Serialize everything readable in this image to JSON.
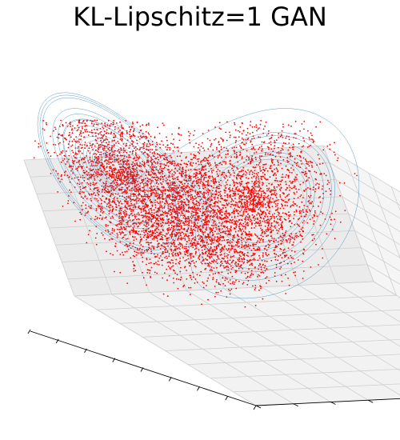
{
  "chart_data": {
    "type": "scatter",
    "projection": "3d",
    "title": "KL-Lipschitz=1 GAN",
    "xlabel": "",
    "ylabel": "",
    "zlabel": "",
    "tick_labels_shown": false,
    "grid": true,
    "attractor": "lorenz",
    "series": [
      {
        "kind": "line",
        "color": "#1f77b4",
        "role": "reference trajectory",
        "points_xyz": [
          [
            1,
            1,
            1
          ],
          [
            8.5,
            10.7,
            13
          ],
          [
            3,
            5.9,
            25.3
          ],
          [
            -2.6,
            -2.5,
            23
          ],
          [
            -9.3,
            -12.4,
            24.3
          ],
          [
            -11.7,
            -9.3,
            33.2
          ],
          [
            -7.5,
            -3.8,
            28.9
          ],
          [
            -5.7,
            -5.6,
            24
          ],
          [
            -7.9,
            -9.4,
            23.6
          ],
          [
            -10.5,
            -11.4,
            29
          ],
          [
            -8.8,
            -6.5,
            30.3
          ],
          [
            -6.1,
            -5.2,
            25
          ],
          [
            -7.2,
            -8.7,
            22.4
          ],
          [
            -10.9,
            -13.2,
            27.2
          ],
          [
            -9.7,
            -6.9,
            32.6
          ],
          [
            -5.9,
            -4.3,
            26.9
          ],
          [
            -4.9,
            -5.4,
            21.7
          ],
          [
            -7.5,
            -9.9,
            19.7
          ],
          [
            -12.9,
            -16.5,
            27.5
          ],
          [
            -10.4,
            -4.3,
            36.1
          ],
          [
            -4.1,
            -0.4,
            26.6
          ],
          [
            -1.6,
            -1.9,
            18.6
          ],
          [
            -1.7,
            -3.9,
            13.1
          ],
          [
            -5.7,
            -10.2,
            13.9
          ],
          [
            -14.1,
            -20.1,
            29.1
          ],
          [
            -7.5,
            1.3,
            36.3
          ],
          [
            -0.6,
            2.5,
            23.7
          ],
          [
            2.6,
            5.6,
            14.5
          ],
          [
            10.7,
            16.4,
            22.6
          ],
          [
            11.5,
            4.6,
            36.1
          ],
          [
            4.1,
            0.9,
            26.1
          ],
          [
            3.2,
            4.3,
            19.2
          ],
          [
            7.5,
            10.3,
            20.2
          ],
          [
            11.8,
            11.7,
            33.7
          ],
          [
            6.4,
            2.5,
            28.4
          ],
          [
            5.3,
            6.3,
            20.4
          ],
          [
            9.2,
            12.3,
            23.6
          ],
          [
            10.2,
            6.9,
            32.3
          ],
          [
            6.3,
            3.9,
            26.1
          ],
          [
            6.6,
            8.2,
            21.5
          ],
          [
            10.4,
            12.1,
            28.9
          ],
          [
            8.1,
            4.4,
            30.6
          ],
          [
            5.3,
            5.3,
            22.6
          ],
          [
            8.2,
            11.1,
            22.1
          ],
          [
            12.5,
            11.4,
            34.7
          ],
          [
            5.9,
            1.6,
            28.7
          ],
          [
            3.7,
            4.1,
            20.6
          ],
          [
            5.7,
            8.8,
            16.6
          ],
          [
            14.4,
            19.5,
            30.2
          ],
          [
            7.8,
            -1.6,
            35.7
          ],
          [
            1.2,
            -0.9,
            26.1
          ],
          [
            -0.6,
            -1.9,
            19.5
          ],
          [
            -3.3,
            -6.3,
            16.2
          ],
          [
            -11.6,
            -17.8,
            25.4
          ],
          [
            -11.3,
            -5.5,
            37.5
          ],
          [
            -4.4,
            -0.4,
            28.1
          ],
          [
            -2.4,
            -2.7,
            20.5
          ],
          [
            -4.7,
            -7.8,
            17.4
          ],
          [
            -13.4,
            -18.5,
            29.5
          ],
          [
            -8.8,
            -0.9,
            36.5
          ],
          [
            -2.4,
            0.4,
            25.8
          ],
          [
            -0.1,
            0.6,
            18.6
          ],
          [
            2.1,
            4.3,
            14.3
          ],
          [
            10.1,
            16.4,
            21.7
          ],
          [
            12.6,
            6.9,
            36.9
          ],
          [
            4.8,
            0.9,
            27.3
          ],
          [
            3.2,
            4,
            20.1
          ],
          [
            6.7,
            9.8,
            18.6
          ],
          [
            12.4,
            13.4,
            33.1
          ],
          [
            6.8,
            2.2,
            29.5
          ],
          [
            4.6,
            5.3,
            21.2
          ],
          [
            8.3,
            11.8,
            21.5
          ],
          [
            11.8,
            8.5,
            34.1
          ],
          [
            6,
            3.2,
            26.9
          ],
          [
            5.8,
            7.5,
            20.8
          ],
          [
            10.2,
            12.9,
            27.4
          ],
          [
            9.1,
            5,
            31.8
          ],
          [
            5.5,
            5,
            23.4
          ],
          [
            7.6,
            10.3,
            21.6
          ],
          [
            12.4,
            12.5,
            33.4
          ],
          [
            6.8,
            2.6,
            29.3
          ],
          [
            4.6,
            5.1,
            21.1
          ]
        ]
      },
      {
        "kind": "scatter",
        "color": "#ff0000",
        "role": "GAN generated samples",
        "distribution": "lorenz attractor with noise",
        "approximate_count": 6000
      }
    ]
  }
}
